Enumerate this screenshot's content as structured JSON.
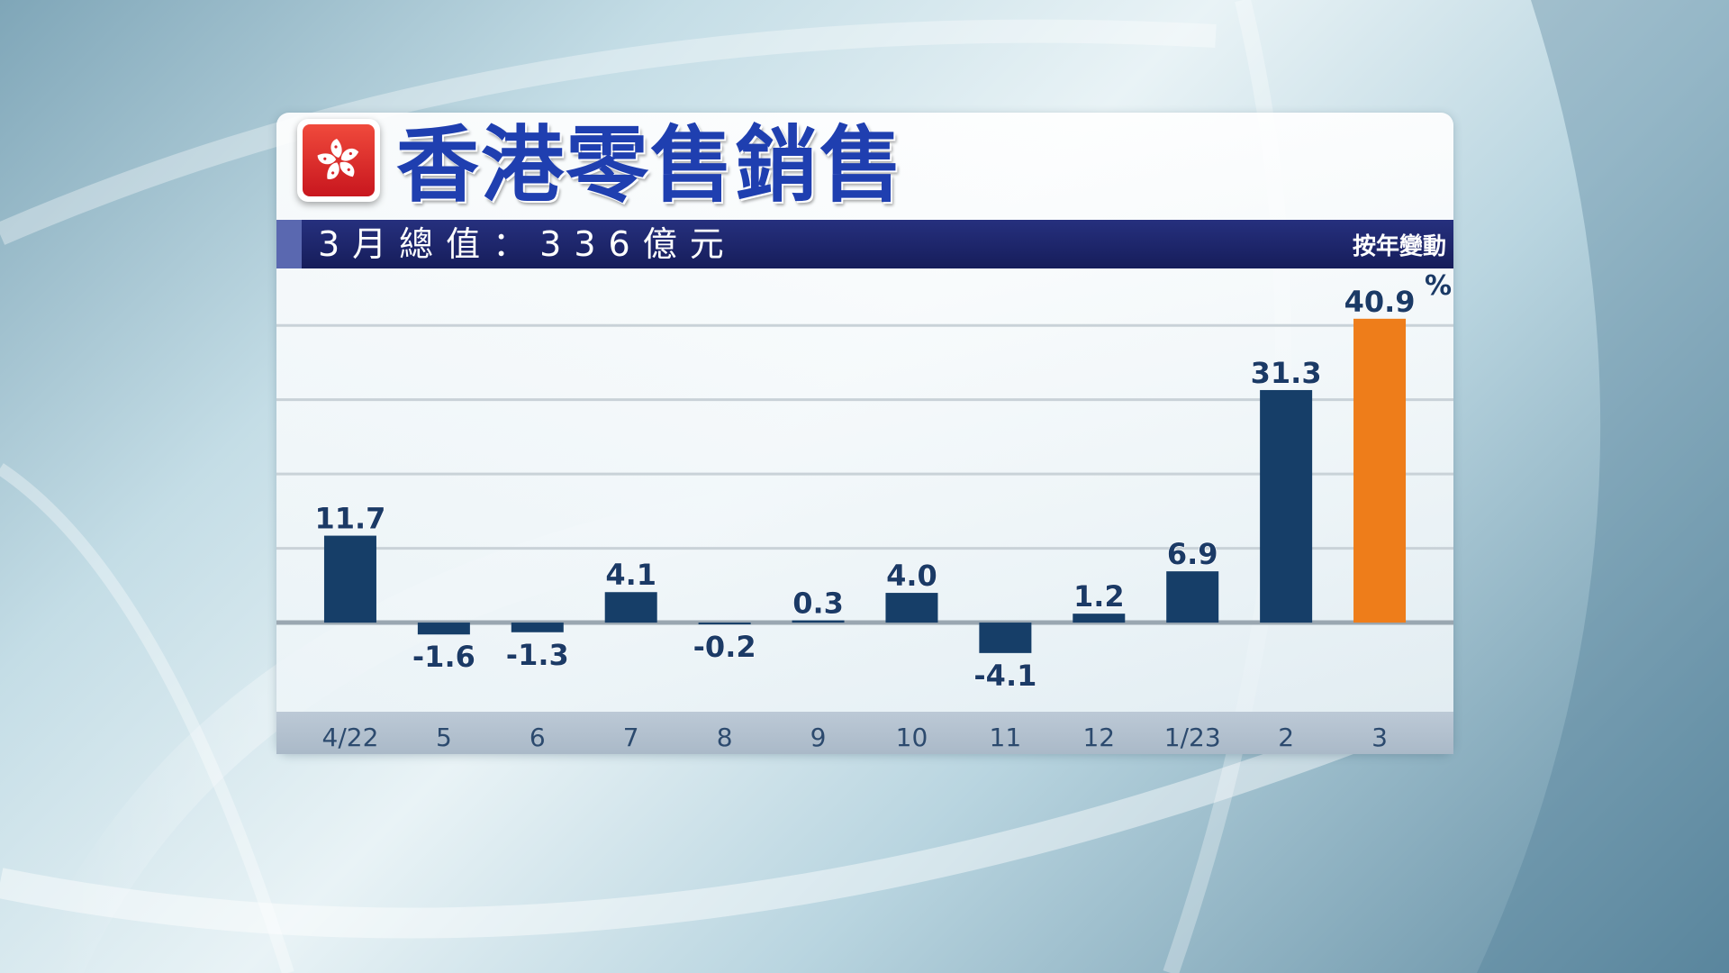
{
  "header": {
    "title": "香港零售銷售",
    "subtitle": "3月總值：336億元",
    "yoy_label": "按年變動",
    "unit": "%"
  },
  "colors": {
    "bar": "#163e68",
    "highlight": "#ee7d1a",
    "label": "#1b3a66",
    "title": "#1f3fb0"
  },
  "chart_data": {
    "type": "bar",
    "categories": [
      "4/22",
      "5",
      "6",
      "7",
      "8",
      "9",
      "10",
      "11",
      "12",
      "1/23",
      "2",
      "3"
    ],
    "values": [
      11.7,
      -1.6,
      -1.3,
      4.1,
      -0.2,
      0.3,
      4.0,
      -4.1,
      1.2,
      6.9,
      31.3,
      40.9
    ],
    "value_labels": [
      "11.7",
      "-1.6",
      "-1.3",
      "4.1",
      "-0.2",
      "0.3",
      "4.0",
      "-4.1",
      "1.2",
      "6.9",
      "31.3",
      "40.9"
    ],
    "highlight_index": 11,
    "ylabel": "%",
    "ylim": [
      -12,
      45
    ],
    "grid": true
  }
}
